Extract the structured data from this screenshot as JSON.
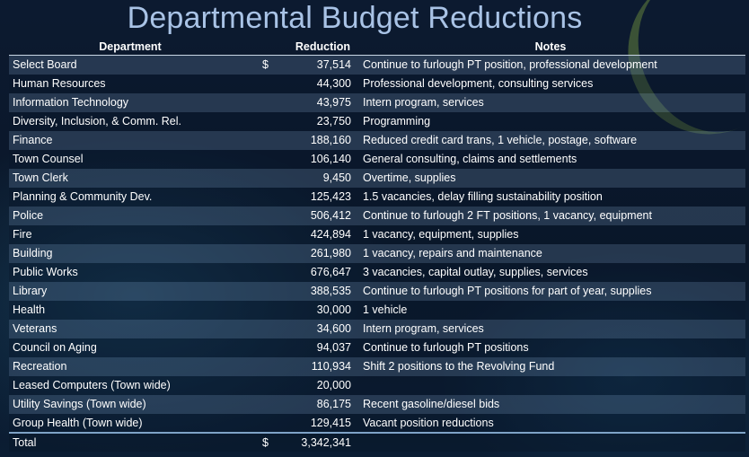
{
  "title": "Departmental Budget Reductions",
  "headers": {
    "department": "Department",
    "reduction": "Reduction",
    "notes": "Notes"
  },
  "rows": [
    {
      "department": "Select Board",
      "currency": "$",
      "reduction": "37,514",
      "notes": "Continue to furlough PT position, professional development"
    },
    {
      "department": "Human Resources",
      "currency": "",
      "reduction": "44,300",
      "notes": "Professional development, consulting services"
    },
    {
      "department": "Information Technology",
      "currency": "",
      "reduction": "43,975",
      "notes": "Intern program, services"
    },
    {
      "department": "Diversity, Inclusion, & Comm. Rel.",
      "currency": "",
      "reduction": "23,750",
      "notes": "Programming"
    },
    {
      "department": "Finance",
      "currency": "",
      "reduction": "188,160",
      "notes": "Reduced credit card trans, 1 vehicle, postage, software"
    },
    {
      "department": "Town Counsel",
      "currency": "",
      "reduction": "106,140",
      "notes": "General consulting, claims and settlements"
    },
    {
      "department": "Town Clerk",
      "currency": "",
      "reduction": "9,450",
      "notes": "Overtime, supplies"
    },
    {
      "department": "Planning & Community Dev.",
      "currency": "",
      "reduction": "125,423",
      "notes": "1.5 vacancies, delay filling sustainability position"
    },
    {
      "department": "Police",
      "currency": "",
      "reduction": "506,412",
      "notes": "Continue to furlough 2 FT positions, 1 vacancy, equipment"
    },
    {
      "department": "Fire",
      "currency": "",
      "reduction": "424,894",
      "notes": "1 vacancy, equipment, supplies"
    },
    {
      "department": "Building",
      "currency": "",
      "reduction": "261,980",
      "notes": "1 vacancy, repairs and maintenance"
    },
    {
      "department": "Public Works",
      "currency": "",
      "reduction": "676,647",
      "notes": "3 vacancies, capital outlay, supplies, services"
    },
    {
      "department": "Library",
      "currency": "",
      "reduction": "388,535",
      "notes": "Continue to furlough PT positions for part of year, supplies"
    },
    {
      "department": "Health",
      "currency": "",
      "reduction": "30,000",
      "notes": "1 vehicle"
    },
    {
      "department": "Veterans",
      "currency": "",
      "reduction": "34,600",
      "notes": "Intern program, services"
    },
    {
      "department": "Council on Aging",
      "currency": "",
      "reduction": "94,037",
      "notes": "Continue to furlough PT positions"
    },
    {
      "department": "Recreation",
      "currency": "",
      "reduction": "110,934",
      "notes": "Shift 2 positions to the Revolving Fund"
    },
    {
      "department": "Leased Computers (Town wide)",
      "currency": "",
      "reduction": "20,000",
      "notes": ""
    },
    {
      "department": "Utility Savings (Town wide)",
      "currency": "",
      "reduction": "86,175",
      "notes": "Recent gasoline/diesel bids"
    },
    {
      "department": "Group Health (Town wide)",
      "currency": "",
      "reduction": "129,415",
      "notes": "Vacant position reductions"
    }
  ],
  "total": {
    "label": "Total",
    "currency": "$",
    "value": "3,342,341"
  }
}
